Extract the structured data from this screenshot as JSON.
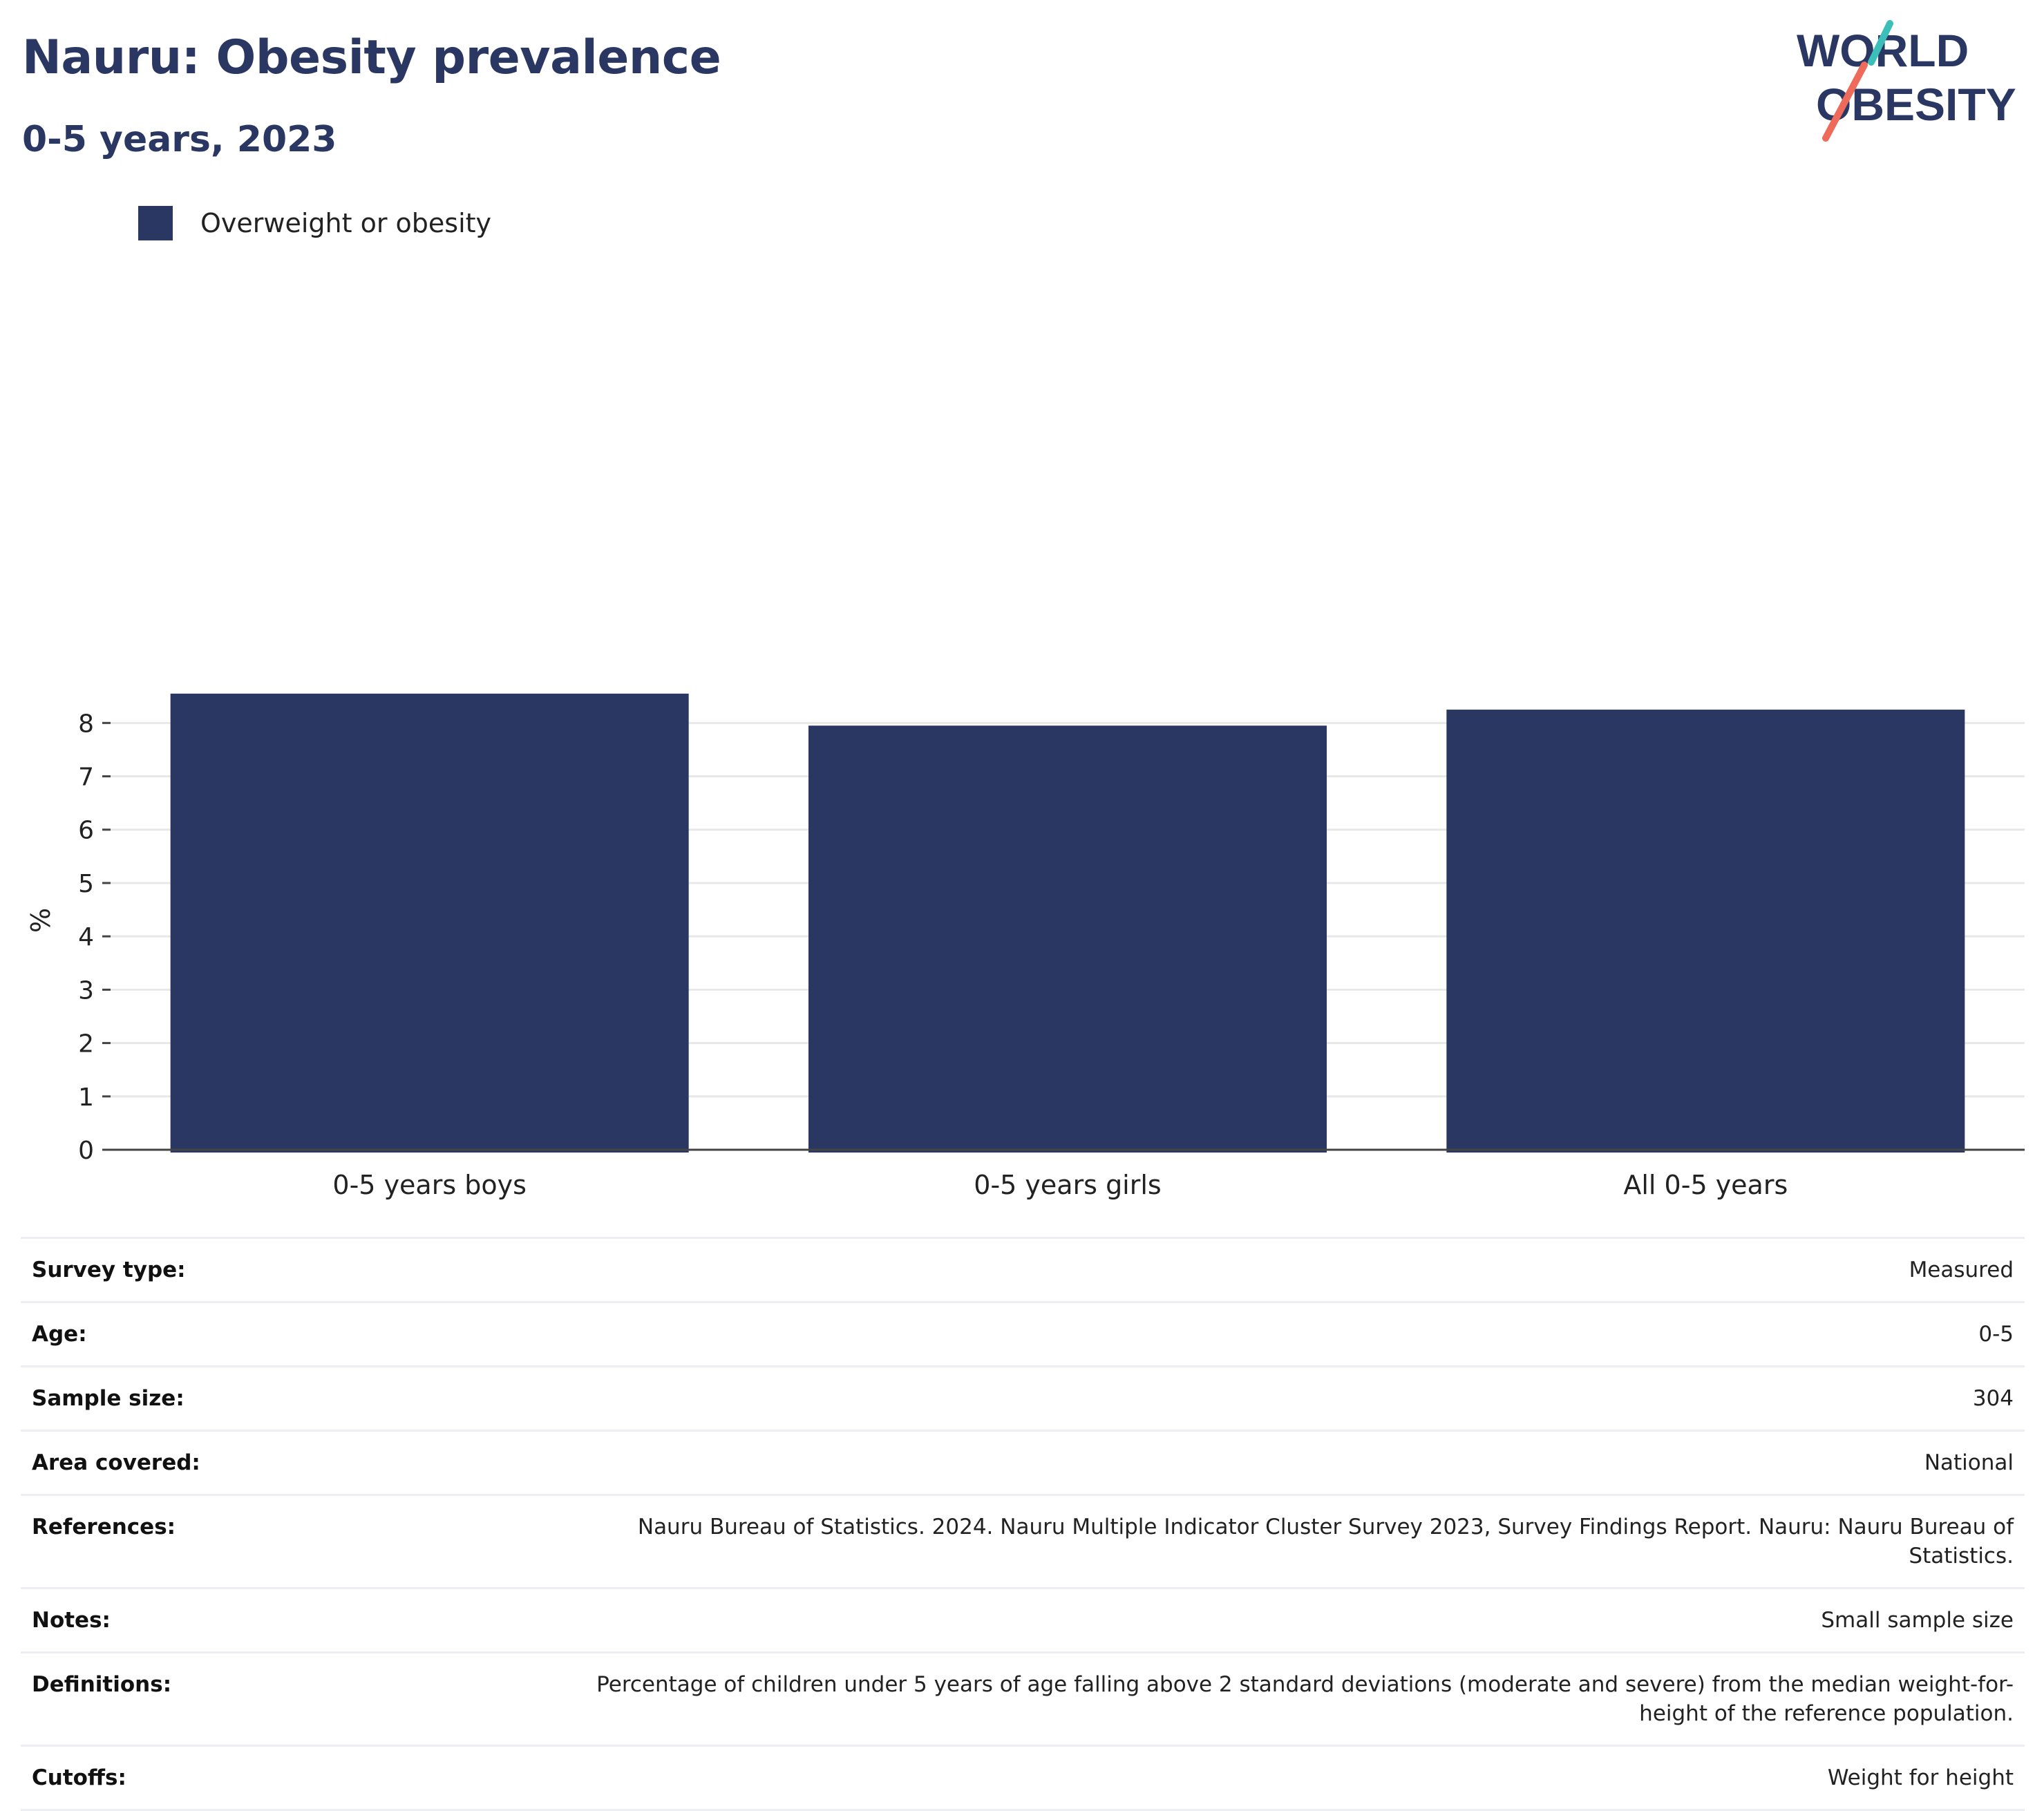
{
  "header": {
    "title": "Nauru: Obesity prevalence",
    "subtitle": "0-5 years, 2023",
    "logo_line1": "WORLD",
    "logo_line2": "OBESITY"
  },
  "colors": {
    "bar": "#2b3763",
    "title": "#2b3763",
    "logo_teal": "#3bbfb8",
    "logo_coral": "#ee6a5a",
    "grid": "#e8e8e8",
    "axis": "#444444"
  },
  "chart_data": {
    "type": "bar",
    "title": "Nauru: Obesity prevalence",
    "subtitle": "0-5 years, 2023",
    "categories": [
      "0-5 years boys",
      "0-5 years girls",
      "All 0-5 years"
    ],
    "series": [
      {
        "name": "Overweight or obesity",
        "values": [
          8.55,
          7.95,
          8.25
        ]
      }
    ],
    "xlabel": "",
    "ylabel": "%",
    "ylim": [
      0,
      8.6
    ],
    "yticks": [
      0,
      1,
      2,
      3,
      4,
      5,
      6,
      7,
      8
    ],
    "grid": true,
    "legend": "top-left"
  },
  "info": [
    {
      "key": "Survey type:",
      "value": "Measured"
    },
    {
      "key": "Age:",
      "value": "0-5"
    },
    {
      "key": "Sample size:",
      "value": "304"
    },
    {
      "key": "Area covered:",
      "value": "National"
    },
    {
      "key": "References:",
      "value": "Nauru Bureau of Statistics. 2024. Nauru Multiple Indicator Cluster Survey 2023, Survey Findings Report. Nauru: Nauru Bureau of Statistics."
    },
    {
      "key": "Notes:",
      "value": "Small sample size"
    },
    {
      "key": "Definitions:",
      "value": "Percentage of children under 5 years of age falling above 2 standard deviations (moderate and severe) from the median weight-for-height of the reference population."
    },
    {
      "key": "Cutoffs:",
      "value": "Weight for height"
    }
  ]
}
